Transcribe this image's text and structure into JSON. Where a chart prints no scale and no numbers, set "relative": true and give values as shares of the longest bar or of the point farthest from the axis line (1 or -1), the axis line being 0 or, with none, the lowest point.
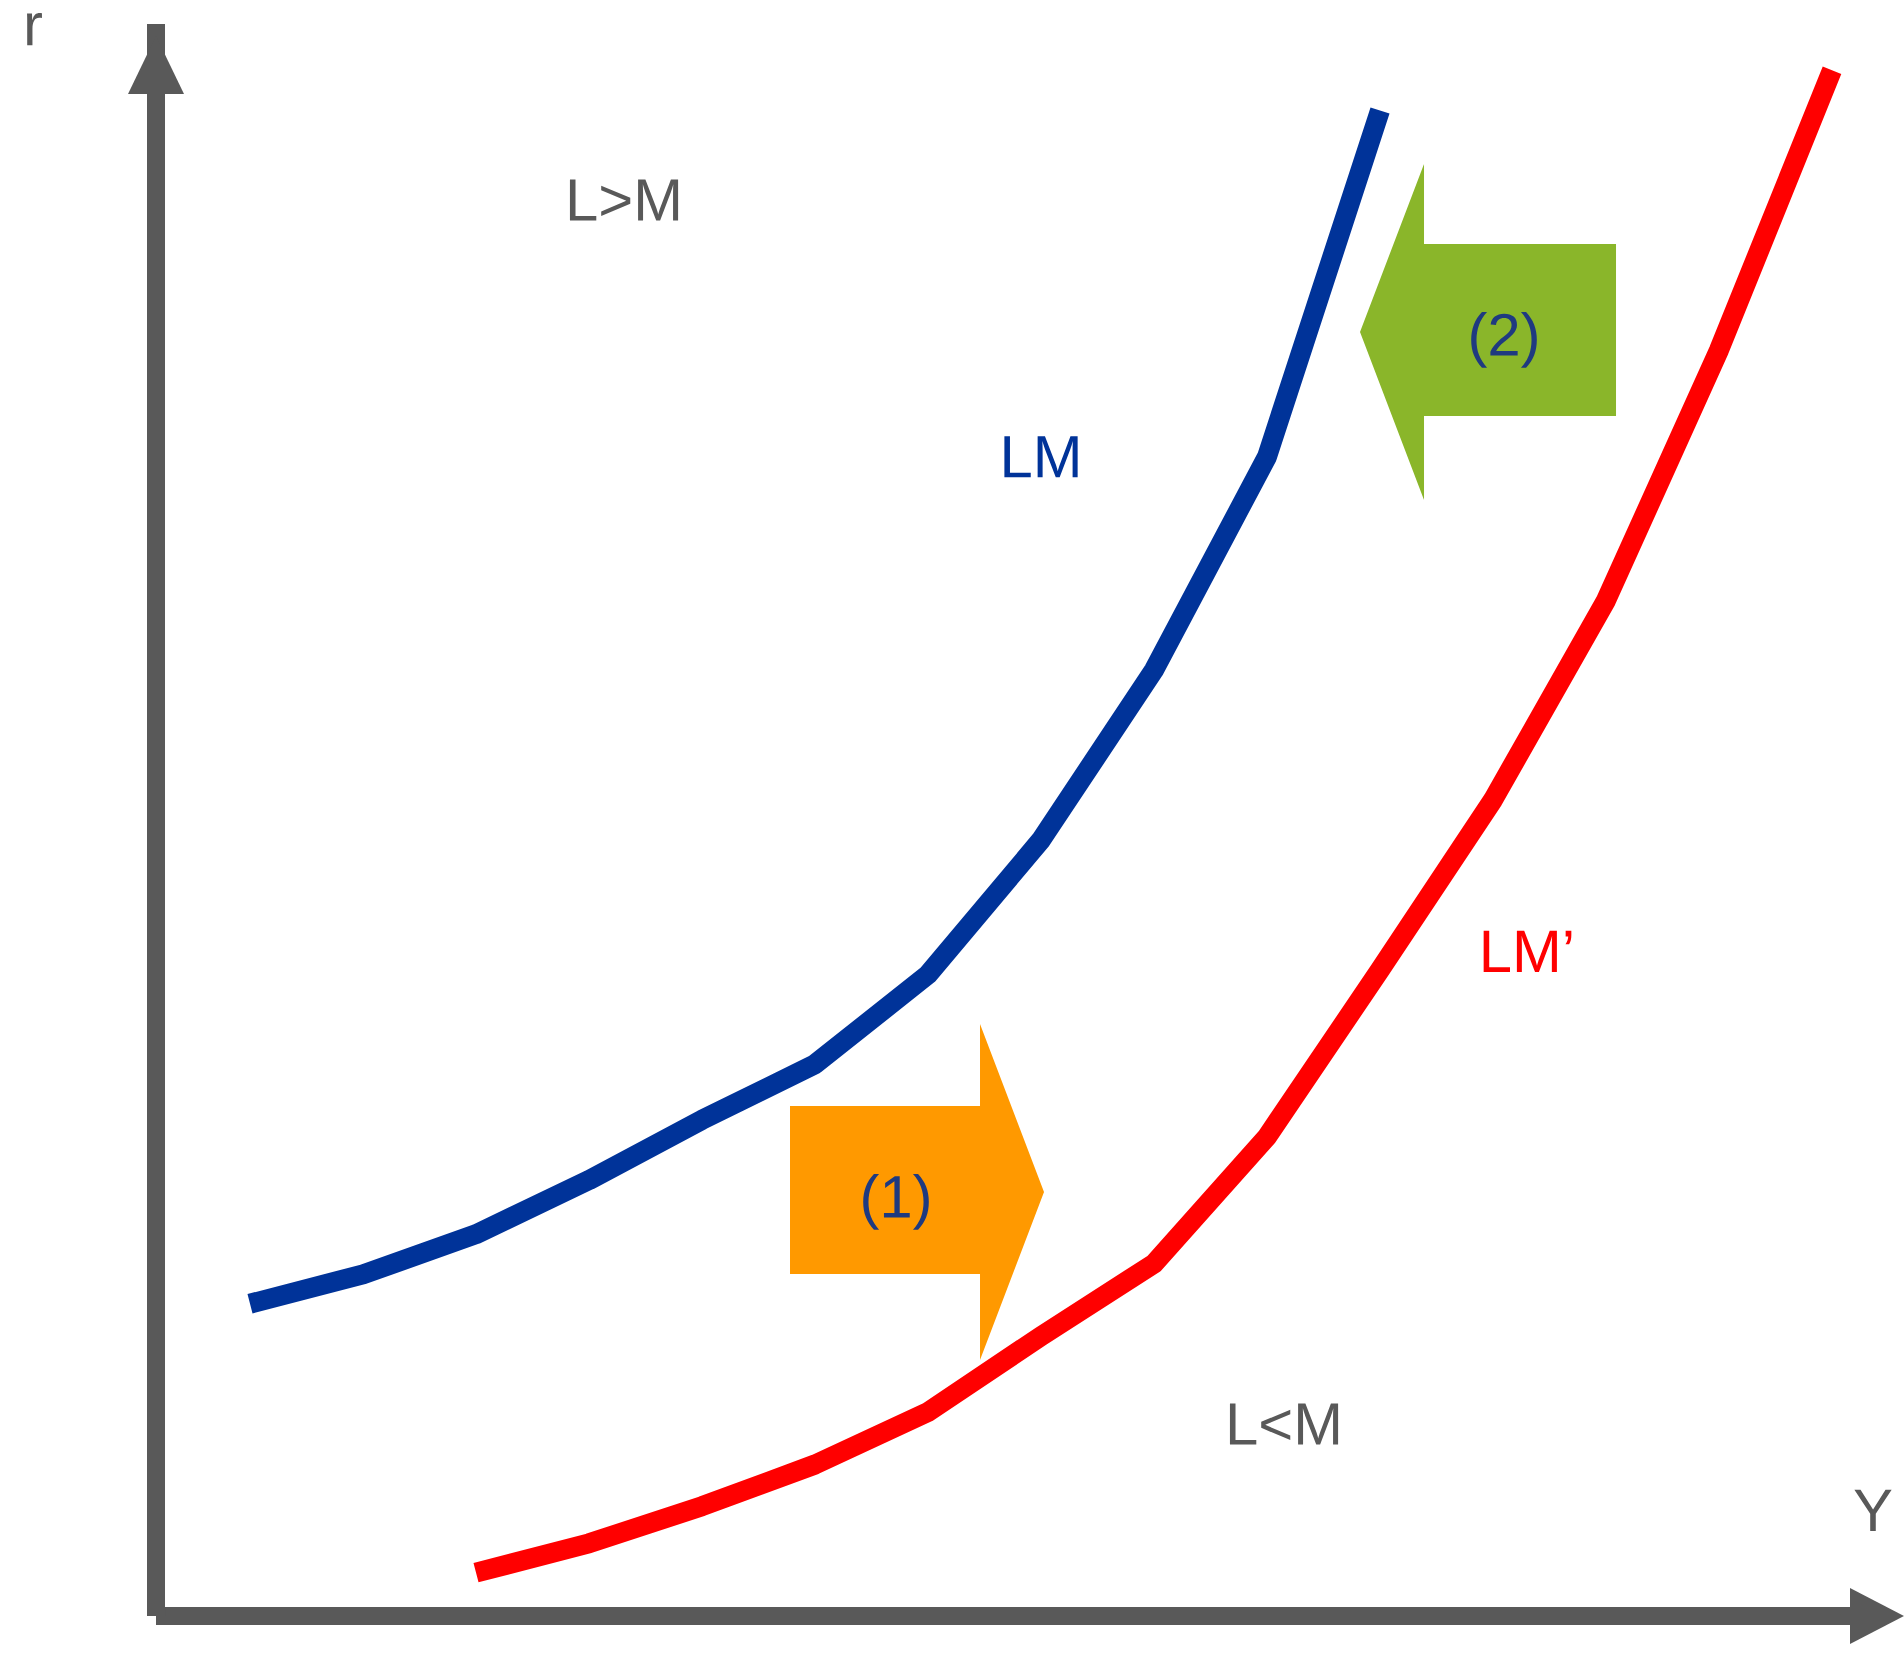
{
  "chart_data": {
    "type": "line",
    "relative": true,
    "xlabel": "Y",
    "ylabel": "r",
    "categories": [
      null,
      null,
      null,
      null,
      null,
      null,
      null,
      null,
      null,
      null,
      null,
      null,
      null,
      null,
      null
    ],
    "series": [
      {
        "name": "LM",
        "color": "#003399",
        "values": [
          0.202,
          0.221,
          0.247,
          0.282,
          0.321,
          0.357,
          0.415,
          0.502,
          0.612,
          0.75,
          0.974,
          null,
          null,
          null,
          null
        ]
      },
      {
        "name": "LM’",
        "color": "#ff0000",
        "values": [
          null,
          null,
          0.028,
          0.047,
          0.071,
          0.098,
          0.132,
          0.181,
          0.228,
          0.31,
          0.418,
          0.528,
          0.657,
          0.819,
          1.0
        ]
      }
    ],
    "annotations": [
      "L>M",
      "L<M",
      "(1)",
      "(2)"
    ]
  }
}
